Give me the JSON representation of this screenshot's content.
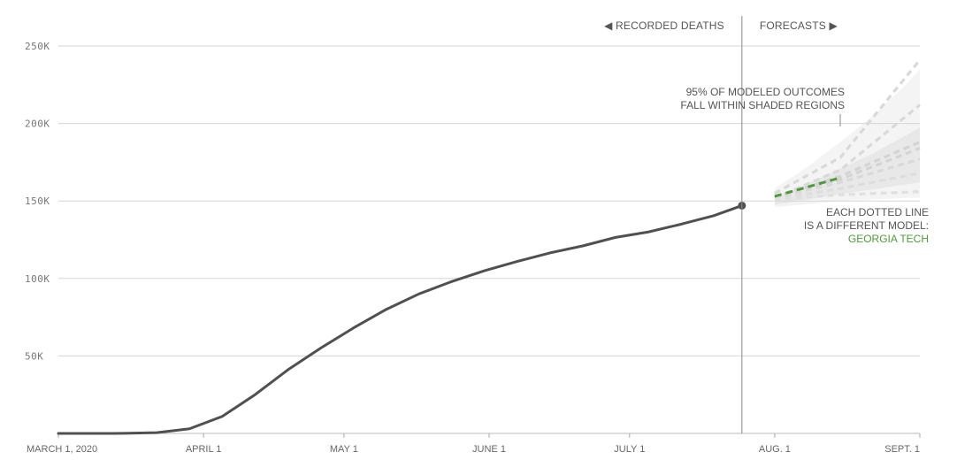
{
  "chart_data": {
    "type": "line",
    "ylim": [
      0,
      250000
    ],
    "xlim": [
      "2020-03-01",
      "2020-09-01"
    ],
    "grid": true,
    "y_ticks": [
      {
        "value": 50000,
        "label": "50K"
      },
      {
        "value": 100000,
        "label": "100K"
      },
      {
        "value": 150000,
        "label": "150K"
      },
      {
        "value": 200000,
        "label": "200K"
      },
      {
        "value": 250000,
        "label": "250K"
      }
    ],
    "x_ticks": [
      {
        "date": "2020-03-01",
        "label": "MARCH 1, 2020"
      },
      {
        "date": "2020-04-01",
        "label": "APRIL 1"
      },
      {
        "date": "2020-05-01",
        "label": "MAY 1"
      },
      {
        "date": "2020-06-01",
        "label": "JUNE 1"
      },
      {
        "date": "2020-07-01",
        "label": "JULY 1"
      },
      {
        "date": "2020-08-01",
        "label": "AUG. 1"
      },
      {
        "date": "2020-09-01",
        "label": "SEPT. 1"
      }
    ],
    "divider": {
      "date": "2020-07-25",
      "left_label": "◀ RECORDED DEATHS",
      "right_label": "FORECASTS ▶"
    },
    "recorded": {
      "color": "#505050",
      "points": [
        {
          "x": "2020-03-01",
          "y": 0
        },
        {
          "x": "2020-03-08",
          "y": 0
        },
        {
          "x": "2020-03-15",
          "y": 50
        },
        {
          "x": "2020-03-22",
          "y": 500
        },
        {
          "x": "2020-03-29",
          "y": 3000
        },
        {
          "x": "2020-04-05",
          "y": 11000
        },
        {
          "x": "2020-04-12",
          "y": 25000
        },
        {
          "x": "2020-04-19",
          "y": 41000
        },
        {
          "x": "2020-04-26",
          "y": 55000
        },
        {
          "x": "2020-05-03",
          "y": 68000
        },
        {
          "x": "2020-05-10",
          "y": 80000
        },
        {
          "x": "2020-05-17",
          "y": 90000
        },
        {
          "x": "2020-05-24",
          "y": 98000
        },
        {
          "x": "2020-05-31",
          "y": 105000
        },
        {
          "x": "2020-06-07",
          "y": 111000
        },
        {
          "x": "2020-06-14",
          "y": 116500
        },
        {
          "x": "2020-06-21",
          "y": 121000
        },
        {
          "x": "2020-06-28",
          "y": 126500
        },
        {
          "x": "2020-07-05",
          "y": 130000
        },
        {
          "x": "2020-07-12",
          "y": 135000
        },
        {
          "x": "2020-07-19",
          "y": 140500
        },
        {
          "x": "2020-07-25",
          "y": 147000
        }
      ]
    },
    "forecast_band": {
      "color": "#bbbbbb",
      "points": [
        {
          "x": "2020-08-01",
          "lo": 146000,
          "hi": 158000
        },
        {
          "x": "2020-08-08",
          "lo": 148000,
          "hi": 172000
        },
        {
          "x": "2020-08-15",
          "lo": 150000,
          "hi": 188000
        },
        {
          "x": "2020-08-22",
          "lo": 151000,
          "hi": 205000
        },
        {
          "x": "2020-08-29",
          "lo": 152000,
          "hi": 225000
        },
        {
          "x": "2020-09-01",
          "lo": 152000,
          "hi": 235000
        }
      ]
    },
    "forecast_models": [
      {
        "color": "#d9d9d9",
        "points": [
          {
            "x": "2020-08-01",
            "y": 155000
          },
          {
            "x": "2020-08-15",
            "y": 178000
          },
          {
            "x": "2020-09-01",
            "y": 241000
          }
        ]
      },
      {
        "color": "#d9d9d9",
        "points": [
          {
            "x": "2020-08-01",
            "y": 152000
          },
          {
            "x": "2020-08-15",
            "y": 170000
          },
          {
            "x": "2020-09-01",
            "y": 212000
          }
        ]
      },
      {
        "color": "#d4d4d4",
        "points": [
          {
            "x": "2020-08-01",
            "y": 152000
          },
          {
            "x": "2020-08-15",
            "y": 166000
          },
          {
            "x": "2020-09-01",
            "y": 188000
          }
        ]
      },
      {
        "color": "#d4d4d4",
        "points": [
          {
            "x": "2020-08-01",
            "y": 153000
          },
          {
            "x": "2020-08-15",
            "y": 164000
          },
          {
            "x": "2020-09-01",
            "y": 184000
          }
        ]
      },
      {
        "color": "#d9d9d9",
        "points": [
          {
            "x": "2020-08-01",
            "y": 152000
          },
          {
            "x": "2020-08-15",
            "y": 162000
          },
          {
            "x": "2020-09-01",
            "y": 177000
          }
        ]
      },
      {
        "color": "#dddddd",
        "points": [
          {
            "x": "2020-08-01",
            "y": 151000
          },
          {
            "x": "2020-08-15",
            "y": 158000
          },
          {
            "x": "2020-09-01",
            "y": 168000
          }
        ]
      },
      {
        "color": "#e0e0e0",
        "points": [
          {
            "x": "2020-08-01",
            "y": 151000
          },
          {
            "x": "2020-08-15",
            "y": 154000
          },
          {
            "x": "2020-09-01",
            "y": 156000
          }
        ]
      }
    ],
    "highlight_model": {
      "color": "#4f9a3d",
      "points": [
        {
          "x": "2020-08-01",
          "y": 153000
        },
        {
          "x": "2020-08-15",
          "y": 165000
        }
      ]
    },
    "annotations": {
      "band": [
        "95% OF MODELED OUTCOMES",
        "FALL WITHIN SHADED REGIONS"
      ],
      "models": [
        "EACH DOTTED LINE",
        "IS A DIFFERENT MODEL:"
      ],
      "highlight_name": "GEORGIA TECH"
    }
  }
}
